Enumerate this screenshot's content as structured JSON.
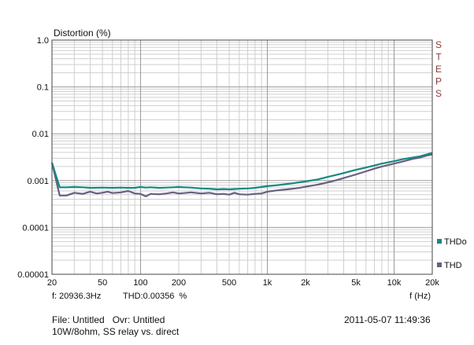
{
  "chart_data": {
    "type": "line",
    "title": "Distortion (%)",
    "xlabel": "f (Hz)",
    "xscale": "log",
    "yscale": "log",
    "xlim": [
      20,
      20000
    ],
    "ylim": [
      1e-05,
      1.0
    ],
    "grid": true,
    "x_ticks": [
      {
        "value": 20,
        "label": "20"
      },
      {
        "value": 50,
        "label": "50"
      },
      {
        "value": 100,
        "label": "100"
      },
      {
        "value": 200,
        "label": "200"
      },
      {
        "value": 500,
        "label": "500"
      },
      {
        "value": 1000,
        "label": "1k"
      },
      {
        "value": 2000,
        "label": "2k"
      },
      {
        "value": 5000,
        "label": "5k"
      },
      {
        "value": 10000,
        "label": "10k"
      },
      {
        "value": 20000,
        "label": "20k"
      }
    ],
    "y_ticks": [
      {
        "value": 1.0,
        "label": "1.0"
      },
      {
        "value": 0.1,
        "label": "0.1"
      },
      {
        "value": 0.01,
        "label": "0.01"
      },
      {
        "value": 0.001,
        "label": "0.001"
      },
      {
        "value": 0.0001,
        "label": "0.0001"
      },
      {
        "value": 1e-05,
        "label": "0.00001"
      }
    ],
    "side_label": "STEPS",
    "legend_position": "right",
    "series": [
      {
        "name": "THDo",
        "color": "#138a80",
        "x": [
          20,
          23,
          26,
          30,
          35,
          40,
          50,
          60,
          70,
          80,
          90,
          100,
          110,
          120,
          140,
          160,
          180,
          200,
          220,
          250,
          300,
          350,
          400,
          450,
          500,
          550,
          600,
          700,
          800,
          900,
          1000,
          1200,
          1500,
          1800,
          2000,
          2500,
          3000,
          3500,
          4000,
          5000,
          6000,
          7000,
          8000,
          10000,
          12000,
          14000,
          16000,
          18000,
          20000
        ],
        "y": [
          0.0024,
          0.00072,
          0.00072,
          0.00073,
          0.00072,
          0.0007,
          0.00071,
          0.0007,
          0.00071,
          0.0007,
          0.0007,
          0.00073,
          0.00071,
          0.00072,
          0.0007,
          0.00071,
          0.00072,
          0.00073,
          0.00072,
          0.00071,
          0.00068,
          0.00067,
          0.00065,
          0.00066,
          0.00065,
          0.00066,
          0.00067,
          0.00068,
          0.0007,
          0.00073,
          0.00076,
          0.0008,
          0.00086,
          0.00092,
          0.00096,
          0.00106,
          0.0012,
          0.00132,
          0.00145,
          0.0017,
          0.0019,
          0.0021,
          0.0023,
          0.0026,
          0.0029,
          0.0031,
          0.0033,
          0.0036,
          0.0039
        ]
      },
      {
        "name": "THD",
        "color": "#6b5e80",
        "x": [
          20,
          23,
          26,
          30,
          35,
          40,
          45,
          50,
          55,
          60,
          70,
          80,
          90,
          100,
          110,
          120,
          140,
          160,
          180,
          200,
          220,
          250,
          300,
          350,
          400,
          450,
          500,
          550,
          600,
          700,
          800,
          900,
          1000,
          1200,
          1500,
          1800,
          2000,
          2500,
          3000,
          3500,
          4000,
          5000,
          6000,
          7000,
          8000,
          10000,
          12000,
          14000,
          16000,
          18000,
          20000
        ],
        "y": [
          0.0024,
          0.00048,
          0.00048,
          0.00055,
          0.00052,
          0.00058,
          0.00053,
          0.00055,
          0.00058,
          0.00054,
          0.00056,
          0.0006,
          0.00053,
          0.00052,
          0.00046,
          0.00052,
          0.00051,
          0.00053,
          0.00056,
          0.00053,
          0.00054,
          0.00056,
          0.00053,
          0.00055,
          0.00051,
          0.00052,
          0.0005,
          0.00055,
          0.00051,
          0.0005,
          0.00052,
          0.00053,
          0.00058,
          0.00062,
          0.00066,
          0.0007,
          0.00074,
          0.00082,
          0.00092,
          0.00102,
          0.00113,
          0.00135,
          0.00158,
          0.0018,
          0.002,
          0.0023,
          0.0026,
          0.0029,
          0.0031,
          0.0034,
          0.0036
        ]
      }
    ]
  },
  "cursor_readout": {
    "frequency": "f: 20936.3Hz",
    "thd_value": "THD:0.00356  %"
  },
  "footer": {
    "file_line": "File: Untitled   Ovr: Untitled",
    "timestamp": "2011-05-07 11:49:36",
    "description": "10W/8ohm, SS relay vs. direct"
  }
}
